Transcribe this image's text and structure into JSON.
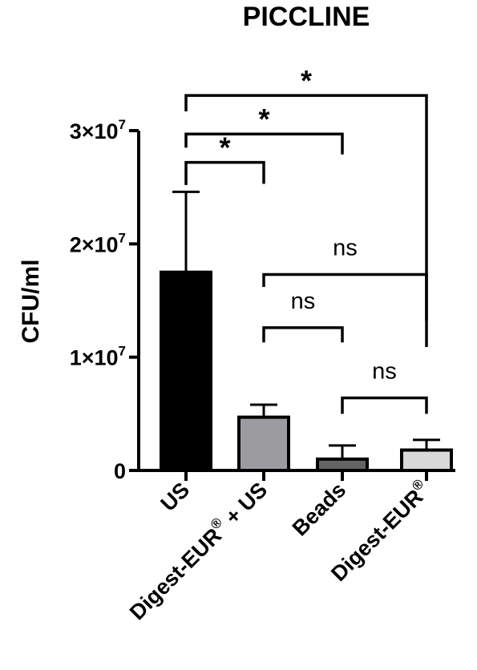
{
  "chart_data": {
    "type": "bar",
    "title": "PICCLINE",
    "ylabel": "CFU/ml",
    "xlabel": "",
    "ylim": [
      0,
      30000000
    ],
    "yticks": [
      {
        "value": 0,
        "base": "0",
        "exp": ""
      },
      {
        "value": 10000000,
        "base": "1×10",
        "exp": "7"
      },
      {
        "value": 20000000,
        "base": "2×10",
        "exp": "7"
      },
      {
        "value": 30000000,
        "base": "3×10",
        "exp": "7"
      }
    ],
    "categories": [
      {
        "main": "US",
        "reg": "",
        "tail": ""
      },
      {
        "main": "Digest-EUR",
        "reg": "®",
        "tail": "  + US"
      },
      {
        "main": "Beads",
        "reg": "",
        "tail": ""
      },
      {
        "main": "Digest-EUR",
        "reg": "®",
        "tail": ""
      }
    ],
    "values": [
      17500000,
      4700000,
      1000000,
      1800000
    ],
    "errors": [
      7100000,
      1100000,
      1200000,
      900000
    ],
    "colors": [
      "#000000",
      "#9c9ca0",
      "#646466",
      "#d9d9d9"
    ],
    "significance": [
      {
        "from": 0,
        "to": 1,
        "label": "*",
        "level": 27200000,
        "drop1": 2000000,
        "drop2": 1900000
      },
      {
        "from": 0,
        "to": 2,
        "label": "*",
        "level": 29700000,
        "drop1": 1200000,
        "drop2": 1800000
      },
      {
        "from": 0,
        "to": 3,
        "label": "*",
        "level": 33100000,
        "drop1": 1400000,
        "drop2": 19900000
      },
      {
        "from": 1,
        "to": 3,
        "label": "ns",
        "level": 17300000,
        "drop1": 1100000,
        "drop2": 6400000
      },
      {
        "from": 1,
        "to": 2,
        "label": "ns",
        "level": 12600000,
        "drop1": 1300000,
        "drop2": 1300000
      },
      {
        "from": 2,
        "to": 3,
        "label": "ns",
        "level": 6400000,
        "drop1": 1400000,
        "drop2": 1400000
      }
    ]
  }
}
